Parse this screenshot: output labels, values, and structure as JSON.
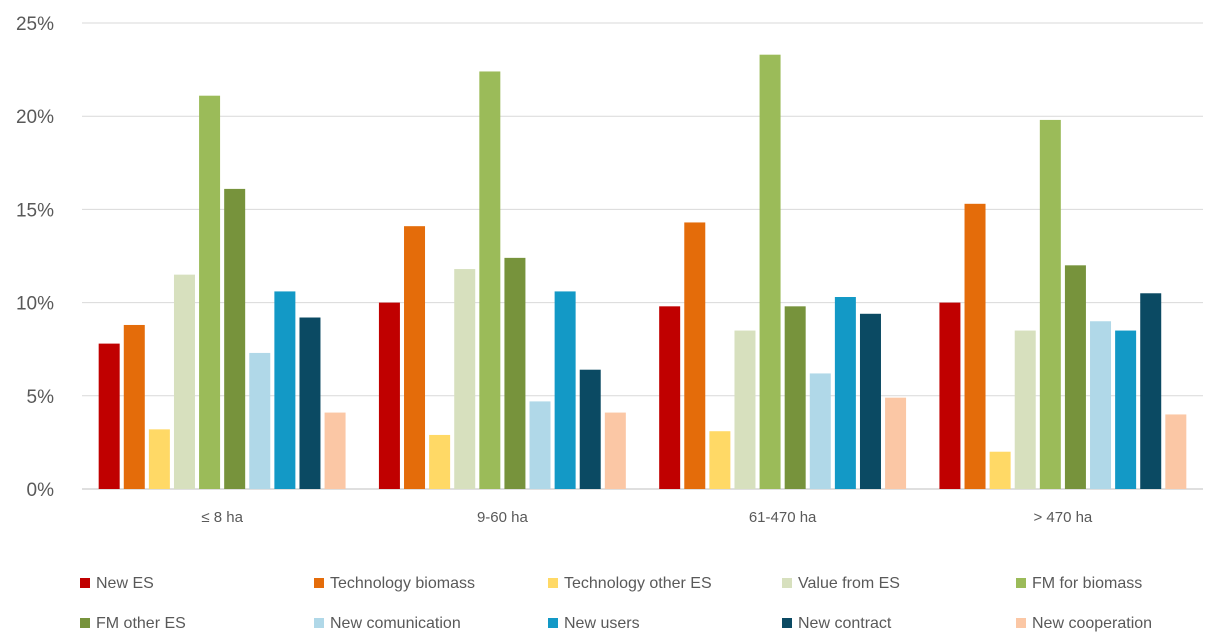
{
  "chart_data": {
    "type": "bar",
    "categories": [
      "≤ 8 ha",
      "9-60 ha",
      "61-470 ha",
      "> 470 ha"
    ],
    "ylim": [
      0,
      25
    ],
    "yticks": [
      0,
      5,
      10,
      15,
      20,
      25
    ],
    "ytick_labels": [
      "0%",
      "5%",
      "10%",
      "15%",
      "20%",
      "25%"
    ],
    "grid": "horizontal",
    "legend_position": "bottom",
    "series": [
      {
        "name": "New ES",
        "color": "#C00000",
        "values": [
          7.8,
          10.0,
          9.8,
          10.0
        ]
      },
      {
        "name": "Technology biomass",
        "color": "#E46C0A",
        "values": [
          8.8,
          14.1,
          14.3,
          15.3
        ]
      },
      {
        "name": "Technology other ES",
        "color": "#FFD966",
        "values": [
          3.2,
          2.9,
          3.1,
          2.0
        ]
      },
      {
        "name": "Value from ES",
        "color": "#D7E0BE",
        "values": [
          11.5,
          11.8,
          8.5,
          8.5
        ]
      },
      {
        "name": "FM for biomass",
        "color": "#9BBB59",
        "values": [
          21.1,
          22.4,
          23.3,
          19.8
        ]
      },
      {
        "name": "FM other ES",
        "color": "#77933C",
        "values": [
          16.1,
          12.4,
          9.8,
          12.0
        ]
      },
      {
        "name": "New comunication",
        "color": "#B0D8E8",
        "values": [
          7.3,
          4.7,
          6.2,
          9.0
        ]
      },
      {
        "name": "New users",
        "color": "#1399C6",
        "values": [
          10.6,
          10.6,
          10.3,
          8.5
        ]
      },
      {
        "name": "New contract",
        "color": "#0B4A63",
        "values": [
          9.2,
          6.4,
          9.4,
          10.5
        ]
      },
      {
        "name": "New cooperation",
        "color": "#FBC7A5",
        "values": [
          4.1,
          4.1,
          4.9,
          4.0
        ]
      }
    ]
  }
}
